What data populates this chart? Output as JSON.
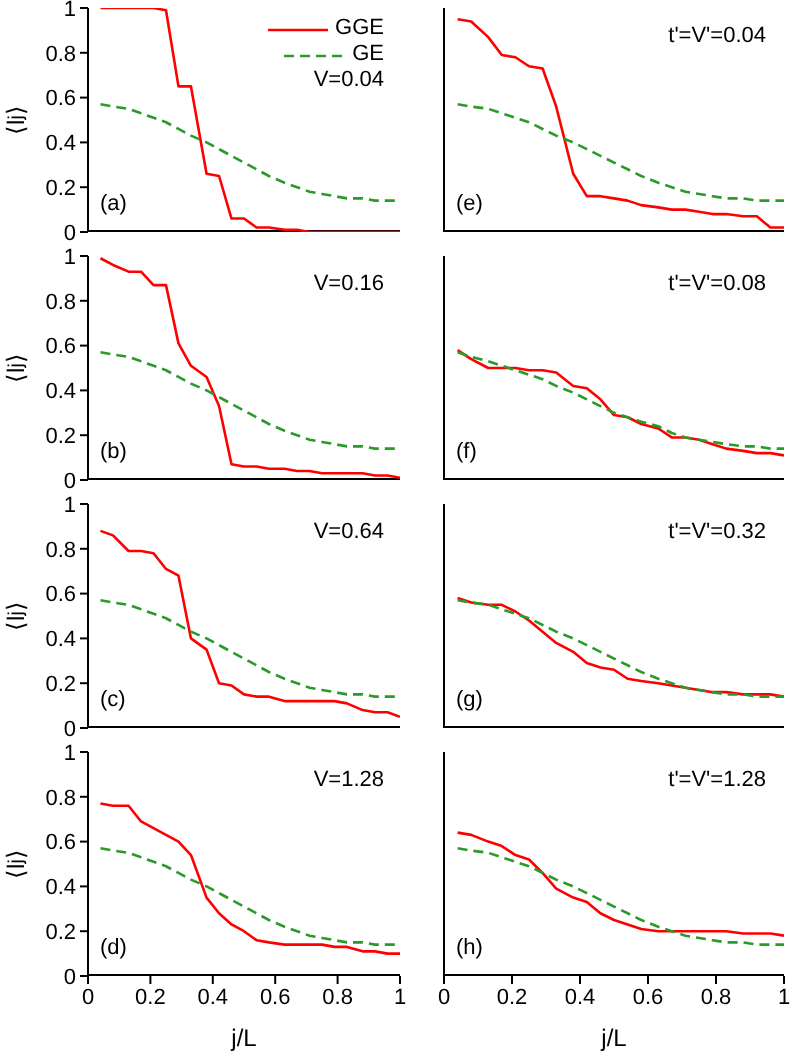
{
  "chart_data": [
    {
      "type": "line",
      "ylabel": "⟨l$_{j}$⟩",
      "x": [
        0.04,
        0.08,
        0.13,
        0.17,
        0.21,
        0.25,
        0.29,
        0.33,
        0.38,
        0.42,
        0.46,
        0.5,
        0.54,
        0.58,
        0.63,
        0.67,
        0.71,
        0.75,
        0.79,
        0.83,
        0.88,
        0.92,
        0.96,
        1
      ],
      "xlim": [
        0,
        1
      ],
      "xticks": [
        0,
        0.2,
        0.4,
        0.6,
        0.8,
        1
      ],
      "ylim": [
        0,
        1
      ],
      "yticks": [
        0,
        0.2,
        0.4,
        0.6,
        0.8,
        1
      ],
      "tick_labels": "y",
      "legend": "top right",
      "annotations": [
        "V=0.04",
        "(a)"
      ],
      "series": [
        {
          "name": "GGE",
          "color": "#ff0000",
          "line_style": "solid",
          "values": [
            1,
            1,
            1,
            1,
            1,
            0.99,
            0.65,
            0.65,
            0.26,
            0.25,
            0.06,
            0.06,
            0.02,
            0.02,
            0.01,
            0.01,
            0,
            0,
            0,
            0,
            0,
            0,
            0,
            0
          ]
        },
        {
          "name": "GE",
          "color": "#2a9a2a",
          "line_style": "dashed",
          "values": [
            0.57,
            0.56,
            0.55,
            0.53,
            0.51,
            0.49,
            0.46,
            0.43,
            0.4,
            0.37,
            0.34,
            0.31,
            0.28,
            0.25,
            0.22,
            0.2,
            0.18,
            0.17,
            0.16,
            0.15,
            0.15,
            0.14,
            0.14,
            0.14
          ]
        }
      ]
    },
    {
      "type": "line",
      "x": [
        0.04,
        0.08,
        0.13,
        0.17,
        0.21,
        0.25,
        0.29,
        0.33,
        0.38,
        0.42,
        0.46,
        0.5,
        0.54,
        0.58,
        0.63,
        0.67,
        0.71,
        0.75,
        0.79,
        0.83,
        0.88,
        0.92,
        0.96,
        1
      ],
      "xlim": [
        0,
        1
      ],
      "xticks": [
        0,
        0.2,
        0.4,
        0.6,
        0.8,
        1
      ],
      "ylim": [
        0,
        1
      ],
      "yticks": [
        0,
        0.2,
        0.4,
        0.6,
        0.8,
        1
      ],
      "tick_labels": false,
      "annotations": [
        "t'=V'=0.04",
        "(e)"
      ],
      "series": [
        {
          "color": "#ff0000",
          "line_style": "solid",
          "values": [
            0.95,
            0.94,
            0.87,
            0.79,
            0.78,
            0.74,
            0.73,
            0.56,
            0.26,
            0.16,
            0.16,
            0.15,
            0.14,
            0.12,
            0.11,
            0.1,
            0.1,
            0.09,
            0.08,
            0.08,
            0.07,
            0.07,
            0.02,
            0.02
          ]
        },
        {
          "color": "#2a9a2a",
          "line_style": "dashed",
          "values": [
            0.57,
            0.56,
            0.55,
            0.53,
            0.51,
            0.49,
            0.46,
            0.43,
            0.4,
            0.37,
            0.34,
            0.31,
            0.28,
            0.25,
            0.22,
            0.2,
            0.18,
            0.17,
            0.16,
            0.15,
            0.15,
            0.14,
            0.14,
            0.14
          ]
        }
      ]
    },
    {
      "type": "line",
      "ylabel": "⟨l$_{j}$⟩",
      "x": [
        0.04,
        0.08,
        0.13,
        0.17,
        0.21,
        0.25,
        0.29,
        0.33,
        0.38,
        0.42,
        0.46,
        0.5,
        0.54,
        0.58,
        0.63,
        0.67,
        0.71,
        0.75,
        0.79,
        0.83,
        0.88,
        0.92,
        0.96,
        1
      ],
      "xlim": [
        0,
        1
      ],
      "xticks": [
        0,
        0.2,
        0.4,
        0.6,
        0.8,
        1
      ],
      "ylim": [
        0,
        1
      ],
      "yticks": [
        0,
        0.2,
        0.4,
        0.6,
        0.8,
        1
      ],
      "tick_labels": "y",
      "annotations": [
        "V=0.16",
        "(b)"
      ],
      "series": [
        {
          "color": "#ff0000",
          "line_style": "solid",
          "values": [
            0.99,
            0.96,
            0.93,
            0.93,
            0.87,
            0.87,
            0.61,
            0.51,
            0.46,
            0.33,
            0.07,
            0.06,
            0.06,
            0.05,
            0.05,
            0.04,
            0.04,
            0.03,
            0.03,
            0.03,
            0.03,
            0.02,
            0.02,
            0.01
          ]
        },
        {
          "color": "#2a9a2a",
          "line_style": "dashed",
          "values": [
            0.57,
            0.56,
            0.55,
            0.53,
            0.51,
            0.49,
            0.46,
            0.43,
            0.4,
            0.37,
            0.34,
            0.31,
            0.28,
            0.25,
            0.22,
            0.2,
            0.18,
            0.17,
            0.16,
            0.15,
            0.15,
            0.14,
            0.14,
            0.14
          ]
        }
      ]
    },
    {
      "type": "line",
      "x": [
        0.04,
        0.08,
        0.13,
        0.17,
        0.21,
        0.25,
        0.29,
        0.33,
        0.38,
        0.42,
        0.46,
        0.5,
        0.54,
        0.58,
        0.63,
        0.67,
        0.71,
        0.75,
        0.79,
        0.83,
        0.88,
        0.92,
        0.96,
        1
      ],
      "xlim": [
        0,
        1
      ],
      "xticks": [
        0,
        0.2,
        0.4,
        0.6,
        0.8,
        1
      ],
      "ylim": [
        0,
        1
      ],
      "yticks": [
        0,
        0.2,
        0.4,
        0.6,
        0.8,
        1
      ],
      "tick_labels": false,
      "annotations": [
        "t'=V'=0.08",
        "(f)"
      ],
      "series": [
        {
          "color": "#ff0000",
          "line_style": "solid",
          "values": [
            0.58,
            0.54,
            0.5,
            0.5,
            0.5,
            0.49,
            0.49,
            0.48,
            0.42,
            0.41,
            0.36,
            0.29,
            0.28,
            0.25,
            0.23,
            0.19,
            0.19,
            0.18,
            0.16,
            0.14,
            0.13,
            0.12,
            0.12,
            0.11
          ]
        },
        {
          "color": "#2a9a2a",
          "line_style": "dashed",
          "values": [
            0.57,
            0.55,
            0.53,
            0.51,
            0.49,
            0.47,
            0.45,
            0.42,
            0.39,
            0.36,
            0.33,
            0.3,
            0.28,
            0.26,
            0.24,
            0.21,
            0.19,
            0.18,
            0.17,
            0.16,
            0.15,
            0.15,
            0.14,
            0.14
          ]
        }
      ]
    },
    {
      "type": "line",
      "ylabel": "⟨l$_{j}$⟩",
      "x": [
        0.04,
        0.08,
        0.13,
        0.17,
        0.21,
        0.25,
        0.29,
        0.33,
        0.38,
        0.42,
        0.46,
        0.5,
        0.54,
        0.58,
        0.63,
        0.67,
        0.71,
        0.75,
        0.79,
        0.83,
        0.88,
        0.92,
        0.96,
        1
      ],
      "xlim": [
        0,
        1
      ],
      "xticks": [
        0,
        0.2,
        0.4,
        0.6,
        0.8,
        1
      ],
      "ylim": [
        0,
        1
      ],
      "yticks": [
        0,
        0.2,
        0.4,
        0.6,
        0.8,
        1
      ],
      "tick_labels": "y",
      "annotations": [
        "V=0.64",
        "(c)"
      ],
      "series": [
        {
          "color": "#ff0000",
          "line_style": "solid",
          "values": [
            0.88,
            0.86,
            0.79,
            0.79,
            0.78,
            0.71,
            0.68,
            0.4,
            0.35,
            0.2,
            0.19,
            0.15,
            0.14,
            0.14,
            0.12,
            0.12,
            0.12,
            0.12,
            0.12,
            0.11,
            0.08,
            0.07,
            0.07,
            0.05
          ]
        },
        {
          "color": "#2a9a2a",
          "line_style": "dashed",
          "values": [
            0.57,
            0.56,
            0.55,
            0.53,
            0.51,
            0.49,
            0.46,
            0.43,
            0.4,
            0.37,
            0.34,
            0.31,
            0.28,
            0.25,
            0.22,
            0.2,
            0.18,
            0.17,
            0.16,
            0.15,
            0.15,
            0.14,
            0.14,
            0.14
          ]
        }
      ]
    },
    {
      "type": "line",
      "x": [
        0.04,
        0.08,
        0.13,
        0.17,
        0.21,
        0.25,
        0.29,
        0.33,
        0.38,
        0.42,
        0.46,
        0.5,
        0.54,
        0.58,
        0.63,
        0.67,
        0.71,
        0.75,
        0.79,
        0.83,
        0.88,
        0.92,
        0.96,
        1
      ],
      "xlim": [
        0,
        1
      ],
      "xticks": [
        0,
        0.2,
        0.4,
        0.6,
        0.8,
        1
      ],
      "ylim": [
        0,
        1
      ],
      "yticks": [
        0,
        0.2,
        0.4,
        0.6,
        0.8,
        1
      ],
      "tick_labels": false,
      "annotations": [
        "t'=V'=0.32",
        "(g)"
      ],
      "series": [
        {
          "color": "#ff0000",
          "line_style": "solid",
          "values": [
            0.58,
            0.56,
            0.55,
            0.55,
            0.52,
            0.48,
            0.43,
            0.38,
            0.34,
            0.29,
            0.27,
            0.26,
            0.22,
            0.21,
            0.2,
            0.19,
            0.18,
            0.17,
            0.16,
            0.16,
            0.15,
            0.15,
            0.15,
            0.14
          ]
        },
        {
          "color": "#2a9a2a",
          "line_style": "dashed",
          "values": [
            0.57,
            0.56,
            0.55,
            0.53,
            0.51,
            0.49,
            0.46,
            0.43,
            0.4,
            0.37,
            0.34,
            0.31,
            0.28,
            0.25,
            0.22,
            0.2,
            0.18,
            0.17,
            0.16,
            0.15,
            0.15,
            0.14,
            0.14,
            0.14
          ]
        }
      ]
    },
    {
      "type": "line",
      "ylabel": "⟨l$_{j}$⟩",
      "xlabel": "j/L",
      "x": [
        0.04,
        0.08,
        0.13,
        0.17,
        0.21,
        0.25,
        0.29,
        0.33,
        0.38,
        0.42,
        0.46,
        0.5,
        0.54,
        0.58,
        0.63,
        0.67,
        0.71,
        0.75,
        0.79,
        0.83,
        0.88,
        0.92,
        0.96,
        1
      ],
      "xlim": [
        0,
        1
      ],
      "xticks": [
        0,
        0.2,
        0.4,
        0.6,
        0.8,
        1
      ],
      "ylim": [
        0,
        1
      ],
      "yticks": [
        0,
        0.2,
        0.4,
        0.6,
        0.8,
        1
      ],
      "annotations": [
        "V=1.28",
        "(d)"
      ],
      "series": [
        {
          "color": "#ff0000",
          "line_style": "solid",
          "values": [
            0.77,
            0.76,
            0.76,
            0.69,
            0.66,
            0.63,
            0.6,
            0.54,
            0.35,
            0.28,
            0.23,
            0.2,
            0.16,
            0.15,
            0.14,
            0.14,
            0.14,
            0.14,
            0.13,
            0.13,
            0.11,
            0.11,
            0.1,
            0.1
          ]
        },
        {
          "color": "#2a9a2a",
          "line_style": "dashed",
          "values": [
            0.57,
            0.56,
            0.55,
            0.53,
            0.51,
            0.49,
            0.46,
            0.43,
            0.4,
            0.37,
            0.34,
            0.31,
            0.28,
            0.25,
            0.22,
            0.2,
            0.18,
            0.17,
            0.16,
            0.15,
            0.15,
            0.14,
            0.14,
            0.14
          ]
        }
      ]
    },
    {
      "type": "line",
      "xlabel": "j/L",
      "x": [
        0.04,
        0.08,
        0.13,
        0.17,
        0.21,
        0.25,
        0.29,
        0.33,
        0.38,
        0.42,
        0.46,
        0.5,
        0.54,
        0.58,
        0.63,
        0.67,
        0.71,
        0.75,
        0.79,
        0.83,
        0.88,
        0.92,
        0.96,
        1
      ],
      "xlim": [
        0,
        1
      ],
      "xticks": [
        0,
        0.2,
        0.4,
        0.6,
        0.8,
        1
      ],
      "ylim": [
        0,
        1
      ],
      "yticks": [
        0,
        0.2,
        0.4,
        0.6,
        0.8,
        1
      ],
      "tick_labels": "x",
      "annotations": [
        "t'=V'=1.28",
        "(h)"
      ],
      "series": [
        {
          "color": "#ff0000",
          "line_style": "solid",
          "values": [
            0.64,
            0.63,
            0.6,
            0.58,
            0.54,
            0.52,
            0.46,
            0.39,
            0.35,
            0.33,
            0.28,
            0.25,
            0.23,
            0.21,
            0.2,
            0.2,
            0.2,
            0.2,
            0.2,
            0.2,
            0.19,
            0.19,
            0.19,
            0.18
          ]
        },
        {
          "color": "#2a9a2a",
          "line_style": "dashed",
          "values": [
            0.57,
            0.56,
            0.55,
            0.53,
            0.51,
            0.49,
            0.46,
            0.43,
            0.4,
            0.37,
            0.34,
            0.31,
            0.28,
            0.25,
            0.22,
            0.2,
            0.18,
            0.17,
            0.16,
            0.15,
            0.15,
            0.14,
            0.14,
            0.14
          ]
        }
      ]
    }
  ]
}
